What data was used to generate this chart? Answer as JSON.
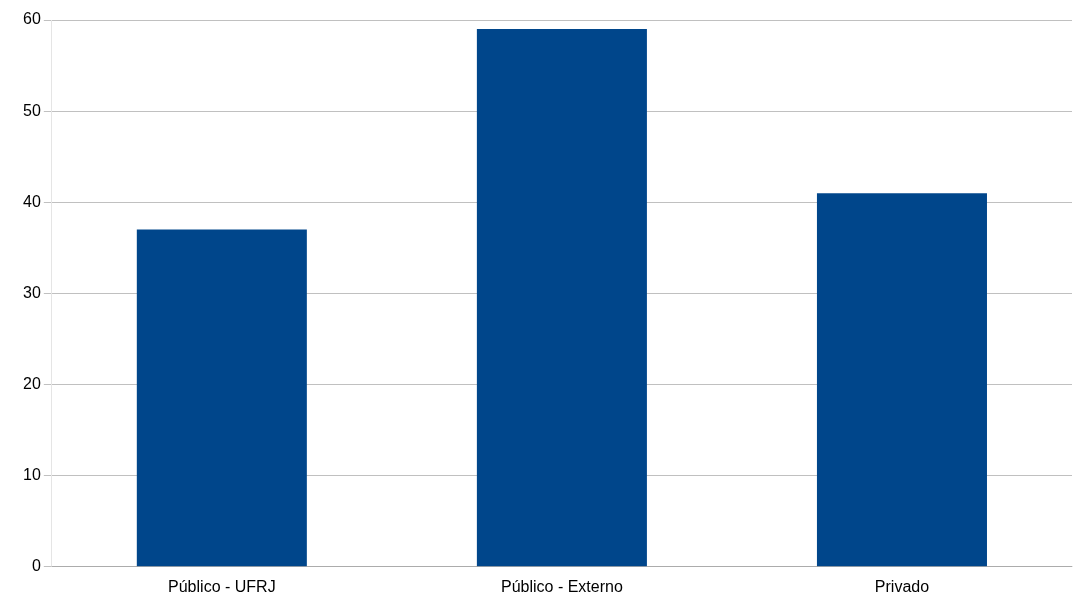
{
  "chart_data": {
    "type": "bar",
    "categories": [
      "Público - UFRJ",
      "Público - Externo",
      "Privado"
    ],
    "values": [
      37,
      59,
      41
    ],
    "color": "#00468b",
    "ylim": [
      0,
      60
    ],
    "yticks": [
      0,
      10,
      20,
      30,
      40,
      50,
      60
    ],
    "grid": "y",
    "legend": false
  }
}
